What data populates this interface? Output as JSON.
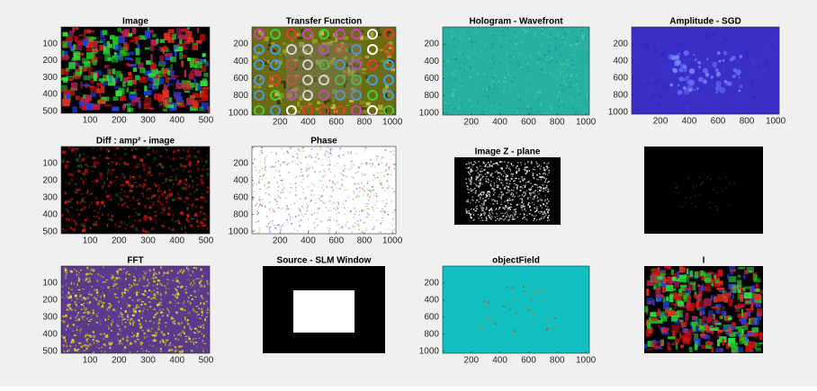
{
  "chart_data": [
    {
      "type": "image",
      "title": "Image",
      "xlim": [
        0.5,
        512.5
      ],
      "ylim": [
        0.5,
        512.5
      ],
      "xticks": [
        100,
        200,
        300,
        400,
        500
      ],
      "yticks": [
        100,
        200,
        300,
        400,
        500
      ]
    },
    {
      "type": "image",
      "title": "Transfer Function",
      "xlim": [
        0.5,
        1024.5
      ],
      "ylim": [
        0.5,
        1024.5
      ],
      "xticks": [
        200,
        400,
        600,
        800,
        1000
      ],
      "yticks": [
        200,
        400,
        600,
        800,
        1000
      ]
    },
    {
      "type": "image",
      "title": "Hologram - Wavefront",
      "xlim": [
        0.5,
        1024.5
      ],
      "ylim": [
        0.5,
        1024.5
      ],
      "xticks": [
        200,
        400,
        600,
        800,
        1000
      ],
      "yticks": [
        200,
        400,
        600,
        800,
        1000
      ]
    },
    {
      "type": "image",
      "title": "Amplitude - SGD",
      "xlim": [
        0.5,
        1024.5
      ],
      "ylim": [
        0.5,
        1024.5
      ],
      "xticks": [
        200,
        400,
        600,
        800,
        1000
      ],
      "yticks": [
        200,
        400,
        600,
        800,
        1000
      ]
    },
    {
      "type": "image",
      "title": "Diff : amp² - image",
      "xlim": [
        0.5,
        512.5
      ],
      "ylim": [
        0.5,
        512.5
      ],
      "xticks": [
        100,
        200,
        300,
        400,
        500
      ],
      "yticks": [
        100,
        200,
        300,
        400,
        500
      ]
    },
    {
      "type": "image",
      "title": "Phase",
      "xlim": [
        0.5,
        1024.5
      ],
      "ylim": [
        0.5,
        1024.5
      ],
      "xticks": [
        200,
        400,
        600,
        800,
        1000
      ],
      "yticks": [
        200,
        400,
        600,
        800,
        1000
      ]
    },
    {
      "type": "image",
      "title": "Image Z - plane"
    },
    {
      "type": "image"
    },
    {
      "type": "image",
      "title": "FFT",
      "xlim": [
        0.5,
        512.5
      ],
      "ylim": [
        0.5,
        512.5
      ],
      "xticks": [
        100,
        200,
        300,
        400,
        500
      ],
      "yticks": [
        100,
        200,
        300,
        400,
        500
      ]
    },
    {
      "type": "image",
      "title": "Source - SLM Window"
    },
    {
      "type": "image",
      "title": "objectField",
      "xlim": [
        0.5,
        1024.5
      ],
      "ylim": [
        0.5,
        1024.5
      ],
      "xticks": [
        200,
        400,
        600,
        800,
        1000
      ],
      "yticks": [
        200,
        400,
        600,
        800,
        1000
      ]
    },
    {
      "type": "image",
      "title": "I"
    }
  ]
}
